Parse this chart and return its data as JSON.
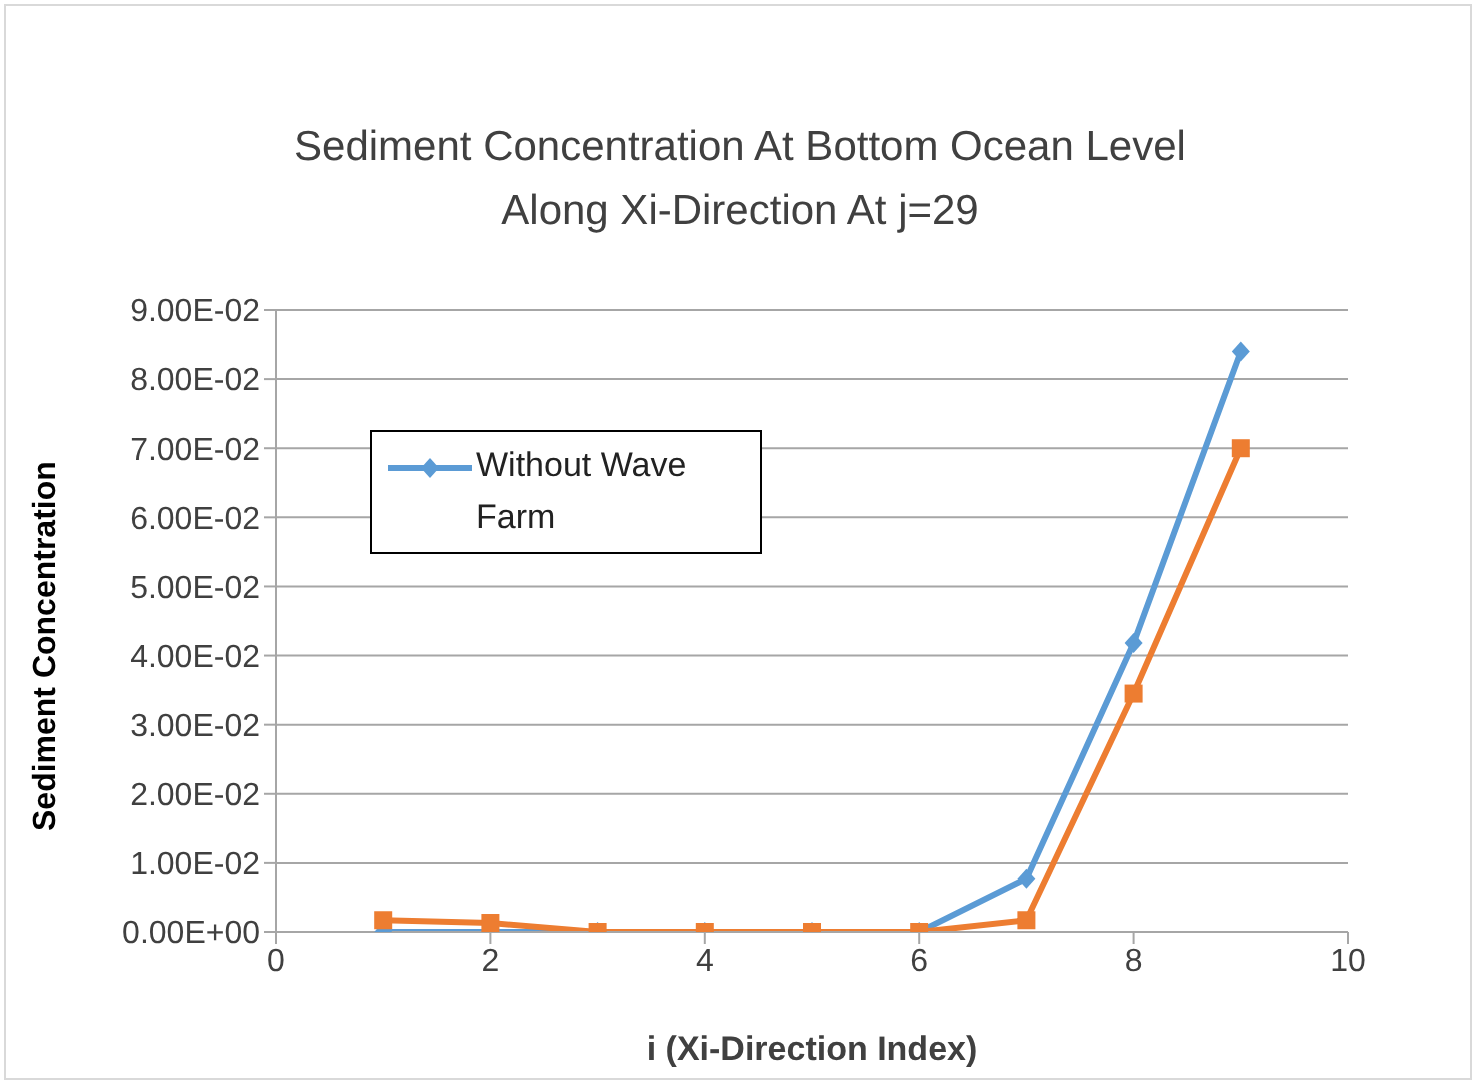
{
  "chart_data": {
    "type": "line",
    "title": "Sediment Concentration At Bottom Ocean Level Along Xi-Direction At j=29",
    "xlabel": "i (Xi-Direction Index)",
    "ylabel": "Sediment Concentration",
    "x": [
      1,
      2,
      3,
      4,
      5,
      6,
      7,
      8,
      9
    ],
    "series": [
      {
        "name": "Without Wave Farm",
        "color": "#5b9bd5",
        "marker": "diamond",
        "values": [
          0,
          0,
          0,
          0,
          0,
          0,
          0.0077,
          0.0418,
          0.084
        ]
      },
      {
        "color": "#ed7d31",
        "marker": "square",
        "values": [
          0.0017,
          0.0013,
          0,
          0,
          0,
          0,
          0.0017,
          0.0345,
          0.07
        ]
      }
    ],
    "xlim": [
      0,
      10
    ],
    "xticks": [
      0,
      2,
      4,
      6,
      8,
      10
    ],
    "ylim": [
      0,
      0.09
    ],
    "yticks": [
      {
        "value": 0,
        "label": "0.00E+00"
      },
      {
        "value": 0.01,
        "label": "1.00E-02"
      },
      {
        "value": 0.02,
        "label": "2.00E-02"
      },
      {
        "value": 0.03,
        "label": "3.00E-02"
      },
      {
        "value": 0.04,
        "label": "4.00E-02"
      },
      {
        "value": 0.05,
        "label": "5.00E-02"
      },
      {
        "value": 0.06,
        "label": "6.00E-02"
      },
      {
        "value": 0.07,
        "label": "7.00E-02"
      },
      {
        "value": 0.08,
        "label": "8.00E-02"
      },
      {
        "value": 0.09,
        "label": "9.00E-02"
      }
    ],
    "grid": "y",
    "legend": "top left",
    "line_style": "solid"
  }
}
